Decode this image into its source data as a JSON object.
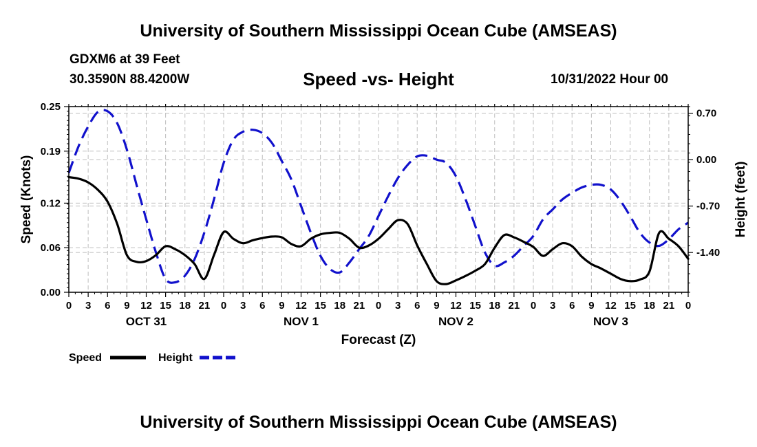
{
  "header": {
    "title": "University of Southern Mississippi Ocean Cube (AMSEAS)",
    "station": "GDXM6 at 39 Feet",
    "coords": "30.3590N  88.4200W",
    "subtitle": "Speed -vs- Height",
    "timestamp": "10/31/2022 Hour 00"
  },
  "footer": {
    "title": "University of Southern Mississippi Ocean Cube (AMSEAS)"
  },
  "chart_data": {
    "type": "line",
    "title": "Speed -vs- Height",
    "xlabel": "Forecast (Z)",
    "ylabel": "Speed (Knots)",
    "y2label": "Height (feet)",
    "x_range": [
      0,
      96
    ],
    "ylim": [
      0,
      0.25
    ],
    "y2lim": [
      -2.0,
      0.8
    ],
    "x_ticks": [
      0,
      3,
      6,
      9,
      12,
      15,
      18,
      21,
      24,
      27,
      30,
      33,
      36,
      39,
      42,
      45,
      48,
      51,
      54,
      57,
      60,
      63,
      66,
      69,
      72,
      75,
      78,
      81,
      84,
      87,
      90,
      93,
      96
    ],
    "x_tick_labels": [
      "0",
      "3",
      "6",
      "9",
      "12",
      "15",
      "18",
      "21",
      "0",
      "3",
      "6",
      "9",
      "12",
      "15",
      "18",
      "21",
      "0",
      "3",
      "6",
      "9",
      "12",
      "15",
      "18",
      "21",
      "0",
      "3",
      "6",
      "9",
      "12",
      "15",
      "18",
      "21",
      "0"
    ],
    "day_labels": [
      {
        "x": 12,
        "label": "OCT 31"
      },
      {
        "x": 36,
        "label": "NOV 1"
      },
      {
        "x": 60,
        "label": "NOV 2"
      },
      {
        "x": 84,
        "label": "NOV 3"
      }
    ],
    "y_ticks": [
      0.0,
      0.06,
      0.12,
      0.19,
      0.25
    ],
    "y_tick_labels": [
      "0.00",
      "0.06",
      "0.12",
      "0.19",
      "0.25"
    ],
    "y2_ticks": [
      0.7,
      0.0,
      -0.7,
      -1.4
    ],
    "y2_tick_labels": [
      "0.70",
      "0.00",
      "-0.70",
      "-1.40"
    ],
    "grid": true,
    "legend": {
      "position": "bottom-left",
      "speed_label": "Speed",
      "height_label": "Height"
    },
    "series": [
      {
        "name": "Speed",
        "axis": "left",
        "color": "#000000",
        "dash": "solid",
        "x": [
          0,
          1.5,
          3,
          4.5,
          6,
          7.5,
          9,
          10.5,
          12,
          13.5,
          15,
          16.5,
          18,
          19.5,
          21,
          22.5,
          24,
          25.5,
          27,
          28.5,
          30,
          31.5,
          33,
          34.5,
          36,
          37.5,
          39,
          40.5,
          42,
          43.5,
          45,
          46.5,
          48,
          49.5,
          51,
          52.5,
          54,
          55.5,
          57,
          58.5,
          60,
          61.5,
          63,
          64.5,
          66,
          67.5,
          69,
          70.5,
          72,
          73.5,
          75,
          76.5,
          78,
          79.5,
          81,
          82.5,
          84,
          85.5,
          87,
          88.5,
          90,
          91.5,
          93,
          94.5,
          96
        ],
        "y": [
          0.155,
          0.153,
          0.148,
          0.138,
          0.122,
          0.092,
          0.05,
          0.041,
          0.042,
          0.05,
          0.062,
          0.058,
          0.05,
          0.038,
          0.018,
          0.05,
          0.081,
          0.072,
          0.066,
          0.07,
          0.073,
          0.075,
          0.074,
          0.065,
          0.062,
          0.072,
          0.078,
          0.08,
          0.08,
          0.072,
          0.06,
          0.063,
          0.072,
          0.085,
          0.097,
          0.092,
          0.063,
          0.038,
          0.015,
          0.011,
          0.016,
          0.022,
          0.029,
          0.038,
          0.06,
          0.077,
          0.074,
          0.068,
          0.061,
          0.049,
          0.058,
          0.066,
          0.062,
          0.048,
          0.038,
          0.032,
          0.025,
          0.018,
          0.015,
          0.017,
          0.028,
          0.08,
          0.072,
          0.062,
          0.045
        ]
      },
      {
        "name": "Height",
        "axis": "right",
        "color": "#1111cc",
        "dash": "dashed",
        "x": [
          0,
          1.5,
          3,
          4.5,
          6,
          7.5,
          9,
          10.5,
          12,
          13.5,
          15,
          16.5,
          18,
          19.5,
          21,
          22.5,
          24,
          25.5,
          27,
          28.5,
          30,
          31.5,
          33,
          34.5,
          36,
          37.5,
          39,
          40.5,
          42,
          43.5,
          45,
          46.5,
          48,
          49.5,
          51,
          52.5,
          54,
          55.5,
          57,
          58.5,
          60,
          61.5,
          63,
          64.5,
          66,
          67.5,
          69,
          70.5,
          72,
          73.5,
          75,
          76.5,
          78,
          79.5,
          81,
          82.5,
          84,
          85.5,
          87,
          88.5,
          90,
          91.5,
          93,
          94.5,
          96
        ],
        "y": [
          -0.2,
          0.2,
          0.5,
          0.72,
          0.73,
          0.55,
          0.15,
          -0.38,
          -0.9,
          -1.4,
          -1.8,
          -1.85,
          -1.75,
          -1.5,
          -1.1,
          -0.6,
          -0.05,
          0.3,
          0.42,
          0.45,
          0.4,
          0.25,
          -0.02,
          -0.3,
          -0.7,
          -1.1,
          -1.45,
          -1.65,
          -1.7,
          -1.55,
          -1.35,
          -1.15,
          -0.85,
          -0.55,
          -0.28,
          -0.08,
          0.05,
          0.06,
          0.0,
          -0.05,
          -0.25,
          -0.6,
          -1.0,
          -1.4,
          -1.6,
          -1.55,
          -1.45,
          -1.3,
          -1.15,
          -0.9,
          -0.75,
          -0.6,
          -0.5,
          -0.42,
          -0.38,
          -0.38,
          -0.45,
          -0.62,
          -0.85,
          -1.1,
          -1.25,
          -1.3,
          -1.2,
          -1.05,
          -0.95
        ]
      }
    ]
  }
}
